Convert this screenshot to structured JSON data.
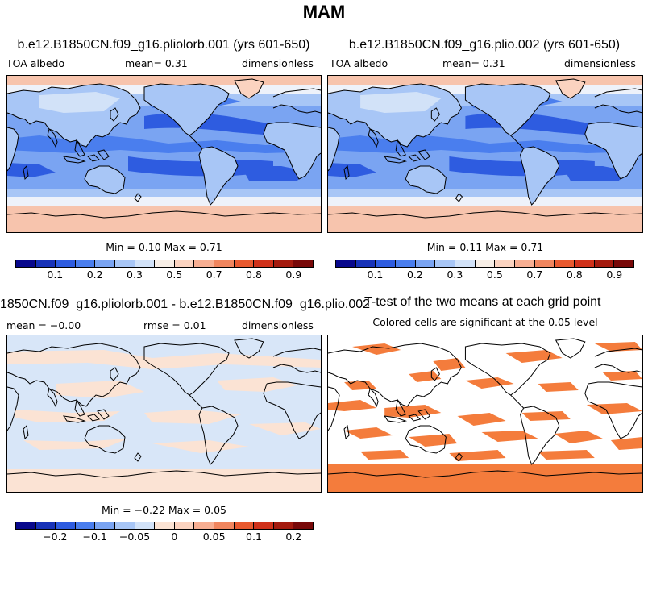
{
  "figure": {
    "title": "MAM"
  },
  "panels": {
    "p1": {
      "title": "b.e12.B1850CN.f09_g16.pliolorb.001 (yrs 601-650)",
      "left_label": "TOA albedo",
      "center_label": "mean=   0.31",
      "right_label": "dimensionless",
      "stats": "Min =   0.10 Max =   0.71",
      "colorbar_ticks": [
        "0.1",
        "0.2",
        "0.3",
        "0.5",
        "0.7",
        "0.8",
        "0.9"
      ]
    },
    "p2": {
      "title": "b.e12.B1850CN.f09_g16.plio.002 (yrs 601-650)",
      "left_label": "TOA albedo",
      "center_label": "mean=   0.31",
      "right_label": "dimensionless",
      "stats": "Min =   0.11 Max =   0.71",
      "colorbar_ticks": [
        "0.1",
        "0.2",
        "0.3",
        "0.5",
        "0.7",
        "0.8",
        "0.9"
      ]
    },
    "p3": {
      "title": "1850CN.f09_g16.pliolorb.001 - b.e12.B1850CN.f09_g16.plio.002",
      "left_label": "mean =  −0.00",
      "center_label": "rmse =   0.01",
      "right_label": "dimensionless",
      "stats": "Min = −0.22 Max =   0.05",
      "colorbar_ticks": [
        "−0.2",
        "−0.1",
        "−0.05",
        "0",
        "0.05",
        "0.1",
        "0.2"
      ]
    },
    "p4": {
      "title": "T-test of the two means at each grid point",
      "subtitle": "Colored cells are significant at the 0.05 level"
    }
  },
  "colors": {
    "albedo_scale": [
      "#08088c",
      "#1732b8",
      "#2e5ce0",
      "#4a7eee",
      "#7aa4f2",
      "#a8c6f6",
      "#d2e2f8",
      "#f7eee6",
      "#fbd3c0",
      "#f7ae92",
      "#f0855e",
      "#e8592f",
      "#d0311a",
      "#a41a0e",
      "#780808"
    ],
    "ocean_deep": "#2e5ce0",
    "ocean_mid": "#4a7eee",
    "ocean_light": "#7aa4f2",
    "land_pale": "#a8c6f6",
    "subtropic_band": "#bcd3f6",
    "polar_white": "#eef2fa",
    "polar_salmon": "#f7c4ad",
    "diff_neg": "#d8e6f8",
    "diff_pos": "#fbe3d4",
    "ttest_color": "#f47c3c",
    "coast": "#000000"
  }
}
